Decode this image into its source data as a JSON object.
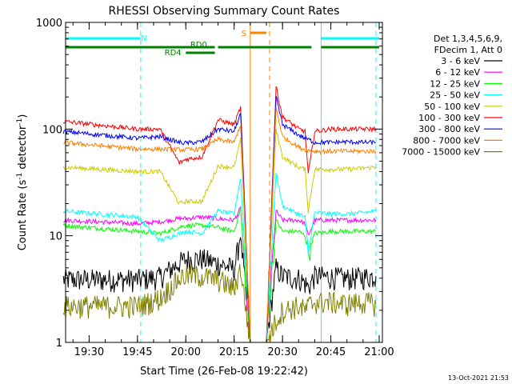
{
  "chart_data": {
    "type": "line",
    "title": "RHESSI Observing Summary Count Rates",
    "xlabel": "Start Time (26-Feb-08 19:22:42)",
    "ylabel_parts": [
      "Count Rate (s",
      "-1",
      " detector",
      "-1",
      ")"
    ],
    "yscale": "log",
    "ylim": [
      1,
      1000
    ],
    "xlim": [
      "19:22:42",
      "21:01:00"
    ],
    "y_ticks": [
      {
        "value": 1,
        "label": "1"
      },
      {
        "value": 10,
        "label": "10"
      },
      {
        "value": 100,
        "label": "100"
      },
      {
        "value": 1000,
        "label": "1000"
      }
    ],
    "x_ticks": [
      {
        "value": "19:30",
        "label": "19:30"
      },
      {
        "value": "19:45",
        "label": "19:45"
      },
      {
        "value": "20:00",
        "label": "20:00"
      },
      {
        "value": "20:15",
        "label": "20:15"
      },
      {
        "value": "20:30",
        "label": "20:30"
      },
      {
        "value": "20:45",
        "label": "20:45"
      },
      {
        "value": "21:00",
        "label": "21:00"
      }
    ],
    "legend_placement": "right",
    "legend_header": [
      "Det 1,3,4,5,6,9,",
      "FDecim 1, Att 0"
    ],
    "grid": false,
    "series": [
      {
        "name": "3 - 6 keV",
        "color": "#000000",
        "x": [
          "19:22",
          "19:45",
          "19:52",
          "19:58",
          "20:00",
          "20:05",
          "20:10",
          "20:15",
          "20:17",
          "20:20",
          "20:22",
          "20:25",
          "20:28",
          "20:30",
          "20:35",
          "20:37",
          "20:38",
          "20:40",
          "20:45",
          "20:50",
          "20:55",
          "20:59"
        ],
        "y": [
          3.9,
          3.9,
          4.1,
          5.6,
          6.0,
          6.1,
          5.5,
          4.9,
          10,
          1.0,
          1.0,
          1.0,
          5,
          4.2,
          4.0,
          3.6,
          3.3,
          4.2,
          4.1,
          4.0,
          4.1,
          4.2
        ]
      },
      {
        "name": "6 - 12 keV",
        "color": "#ff00ff",
        "x": [
          "19:22",
          "19:45",
          "19:52",
          "19:58",
          "20:00",
          "20:05",
          "20:10",
          "20:15",
          "20:17",
          "20:20",
          "20:22",
          "20:25",
          "20:28",
          "20:30",
          "20:35",
          "20:37",
          "20:38",
          "20:40",
          "20:45",
          "20:50",
          "20:55",
          "20:59"
        ],
        "y": [
          14,
          13,
          13.5,
          14.5,
          14.5,
          15,
          14.5,
          14,
          18,
          1.0,
          1.0,
          1.0,
          17,
          14,
          14,
          13,
          10,
          14,
          14,
          14,
          14,
          14
        ]
      },
      {
        "name": "12 - 25 keV",
        "color": "#00ff00",
        "x": [
          "19:22",
          "19:45",
          "19:52",
          "19:58",
          "20:00",
          "20:05",
          "20:10",
          "20:15",
          "20:17",
          "20:20",
          "20:22",
          "20:25",
          "20:28",
          "20:30",
          "20:35",
          "20:37",
          "20:38",
          "20:40",
          "20:45",
          "20:50",
          "20:55",
          "20:59"
        ],
        "y": [
          12.5,
          11,
          10.5,
          12,
          12.5,
          12.5,
          12,
          11,
          18,
          1.0,
          1.0,
          1.0,
          14,
          11,
          11,
          10,
          7,
          10.5,
          11,
          11,
          11,
          11
        ]
      },
      {
        "name": "25 - 50 keV",
        "color": "#00ffff",
        "x": [
          "19:22",
          "19:45",
          "19:52",
          "19:58",
          "20:00",
          "20:05",
          "20:10",
          "20:15",
          "20:17",
          "20:20",
          "20:22",
          "20:25",
          "20:28",
          "20:30",
          "20:35",
          "20:37",
          "20:38",
          "20:40",
          "20:45",
          "20:50",
          "20:55",
          "20:59"
        ],
        "y": [
          17,
          15,
          9,
          10.5,
          11,
          10.5,
          17,
          16,
          35,
          1.0,
          1.0,
          1.0,
          40,
          19,
          16,
          15,
          7,
          16.5,
          16,
          16,
          16.5,
          17
        ]
      },
      {
        "name": "50 - 100 keV",
        "color": "#cccc00",
        "x": [
          "19:22",
          "19:45",
          "19:52",
          "19:58",
          "20:00",
          "20:05",
          "20:10",
          "20:15",
          "20:17",
          "20:20",
          "20:22",
          "20:25",
          "20:28",
          "20:30",
          "20:35",
          "20:37",
          "20:38",
          "20:40",
          "20:45",
          "20:50",
          "20:55",
          "20:59"
        ],
        "y": [
          44,
          40,
          40,
          20,
          21,
          21,
          45,
          44,
          80,
          1.0,
          1.0,
          1.0,
          100,
          55,
          44,
          42,
          17,
          42,
          42,
          42,
          43,
          44
        ]
      },
      {
        "name": "100 - 300 keV",
        "color": "#ff0000",
        "x": [
          "19:22",
          "19:45",
          "19:52",
          "19:58",
          "20:00",
          "20:05",
          "20:10",
          "20:15",
          "20:17",
          "20:20",
          "20:22",
          "20:25",
          "20:28",
          "20:30",
          "20:35",
          "20:37",
          "20:38",
          "20:40",
          "20:45",
          "20:50",
          "20:55",
          "20:59"
        ],
        "y": [
          118,
          100,
          100,
          48,
          52,
          55,
          122,
          110,
          160,
          1.0,
          1.0,
          1.0,
          250,
          130,
          100,
          95,
          38,
          95,
          100,
          100,
          100,
          100
        ]
      },
      {
        "name": "300 - 800 keV",
        "color": "#0000ff",
        "x": [
          "19:22",
          "19:45",
          "19:52",
          "19:58",
          "20:00",
          "20:05",
          "20:10",
          "20:15",
          "20:17",
          "20:20",
          "20:22",
          "20:25",
          "20:28",
          "20:30",
          "20:35",
          "20:37",
          "20:38",
          "20:40",
          "20:45",
          "20:50",
          "20:55",
          "20:59"
        ],
        "y": [
          95,
          82,
          85,
          75,
          74,
          76,
          100,
          95,
          140,
          1.0,
          1.0,
          1.0,
          200,
          110,
          88,
          82,
          80,
          75,
          75,
          76,
          75,
          75
        ]
      },
      {
        "name": "800 - 7000 keV",
        "color": "#ff8000",
        "x": [
          "19:22",
          "19:45",
          "19:52",
          "19:58",
          "20:00",
          "20:05",
          "20:10",
          "20:15",
          "20:17",
          "20:20",
          "20:22",
          "20:25",
          "20:28",
          "20:30",
          "20:35",
          "20:37",
          "20:38",
          "20:40",
          "20:45",
          "20:50",
          "20:55",
          "20:59"
        ],
        "y": [
          75,
          65,
          65,
          64,
          64,
          65,
          80,
          75,
          110,
          1.0,
          1.0,
          1.0,
          160,
          85,
          68,
          64,
          63,
          62,
          62,
          62,
          62,
          62
        ]
      },
      {
        "name": "7000 - 15000 keV",
        "color": "#808000",
        "x": [
          "19:22",
          "19:45",
          "19:52",
          "19:58",
          "20:00",
          "20:05",
          "20:10",
          "20:15",
          "20:17",
          "20:20",
          "20:22",
          "20:25",
          "20:28",
          "20:30",
          "20:35",
          "20:37",
          "20:38",
          "20:40",
          "20:45",
          "20:50",
          "20:55",
          "20:59"
        ],
        "y": [
          2.2,
          2.2,
          2.6,
          4,
          4.3,
          4.2,
          3.9,
          3.2,
          5,
          1.0,
          1.0,
          1.0,
          1.6,
          2.0,
          2.2,
          2.0,
          2.2,
          2.4,
          2.4,
          2.3,
          2.4,
          2.3
        ]
      }
    ],
    "annotations": [
      {
        "label": "N",
        "color": "#00ffff",
        "bars": [
          [
            "19:22:42",
            "19:46"
          ],
          [
            "20:42",
            "21:00"
          ]
        ],
        "vlines_dashed": [
          "19:46",
          "20:59"
        ],
        "vlines_solid": [
          "20:42"
        ]
      },
      {
        "label": "S",
        "color": "#ff8000",
        "bars": [
          [
            "20:20",
            "20:25"
          ]
        ],
        "vlines_solid": [
          "20:20"
        ],
        "vlines_dashed": [
          "20:26"
        ]
      },
      {
        "label": "RD0",
        "color": "#008000",
        "bars": [
          [
            "19:22:42",
            "20:09"
          ],
          [
            "20:10",
            "20:39"
          ],
          [
            "20:42",
            "21:00"
          ]
        ]
      },
      {
        "label": "RD4",
        "color": "#008000",
        "bars": [
          [
            "20:00",
            "20:09"
          ]
        ]
      }
    ]
  },
  "footer": {
    "timestamp": "13-Oct-2021 21:53"
  }
}
